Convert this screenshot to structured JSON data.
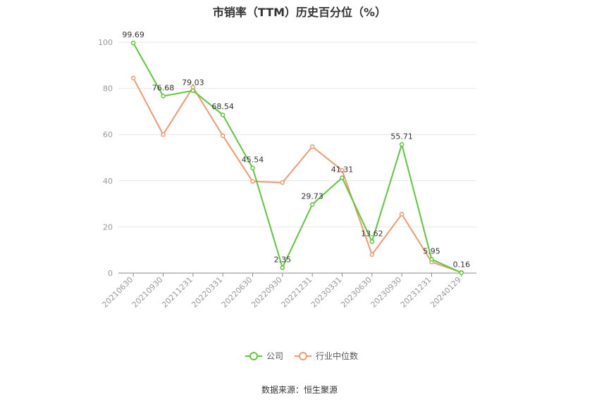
{
  "chart_data": {
    "type": "line",
    "title": "市销率（TTM）历史百分位（%）",
    "source": "数据来源：恒生聚源",
    "categories": [
      "20210630",
      "20210930",
      "20211231",
      "20220331",
      "20220630",
      "20220930",
      "20221231",
      "20230331",
      "20230630",
      "20230930",
      "20231231",
      "20240129"
    ],
    "ylim": [
      0,
      100
    ],
    "yticks": [
      0,
      20,
      40,
      60,
      80,
      100
    ],
    "grid": true,
    "legend_position": "bottom",
    "series": [
      {
        "name": "公司",
        "color": "#5cc83a",
        "show_labels": true,
        "labels": [
          "99.69",
          "76.68",
          "79.03",
          "68.54",
          "45.54",
          "2.35",
          "29.73",
          "41.31",
          "13.62",
          "55.71",
          "5.95",
          "0.16"
        ],
        "values": [
          99.69,
          76.68,
          79.03,
          68.54,
          45.54,
          2.35,
          29.73,
          41.31,
          13.62,
          55.71,
          5.95,
          0.16
        ]
      },
      {
        "name": "行业中位数",
        "color": "#f09a6e",
        "show_labels": false,
        "values": [
          84.5,
          60.0,
          80.5,
          59.5,
          39.7,
          39.2,
          54.8,
          44.5,
          8.0,
          25.5,
          4.8,
          0.3
        ]
      }
    ]
  }
}
